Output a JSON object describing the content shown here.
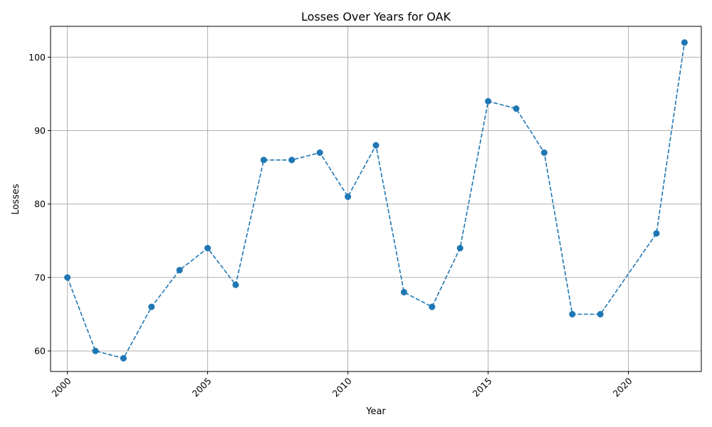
{
  "colors": {
    "series": "#1f77b4",
    "grid": "#b0b0b0",
    "axis": "#000000",
    "background": "#ffffff"
  },
  "chart_data": {
    "type": "line",
    "title": "Losses Over Years for OAK",
    "xlabel": "Year",
    "ylabel": "Losses",
    "xlim": [
      1999.4,
      2022.6
    ],
    "ylim": [
      57.2,
      104.2
    ],
    "xticks": [
      2000,
      2005,
      2010,
      2015,
      2020
    ],
    "yticks": [
      60,
      70,
      80,
      90,
      100
    ],
    "grid": true,
    "line_style": "dashed",
    "marker": "circle",
    "x_tick_rotation_deg": 45,
    "series": [
      {
        "x": [
          2000,
          2001,
          2002,
          2003,
          2004,
          2005,
          2006,
          2007,
          2008,
          2009,
          2010,
          2011,
          2012,
          2013,
          2014,
          2015,
          2016,
          2017,
          2018,
          2019,
          2021,
          2022
        ],
        "values": [
          70,
          60,
          59,
          66,
          71,
          74,
          69,
          86,
          86,
          87,
          81,
          88,
          68,
          66,
          74,
          94,
          93,
          87,
          65,
          65,
          76,
          102
        ]
      }
    ]
  }
}
